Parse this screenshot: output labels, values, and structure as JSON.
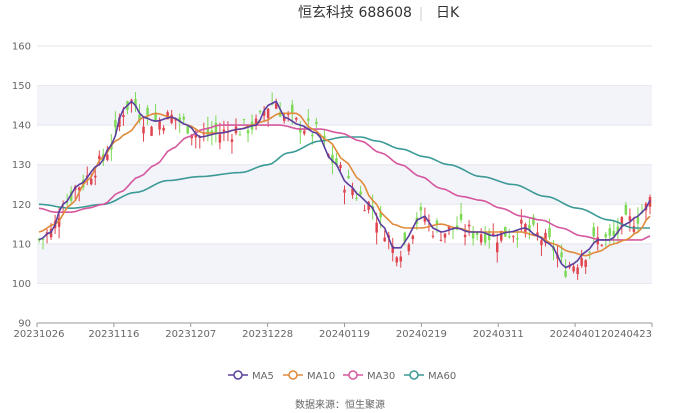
{
  "header": {
    "title": "恒玄科技 688608",
    "period": "日K"
  },
  "source": "数据来源：恒生聚源",
  "colors": {
    "up": "#e0454f",
    "down": "#7ed957",
    "band": "#f3f4fa",
    "axis": "#999999"
  },
  "chart_data": {
    "type": "candlestick",
    "title": "恒玄科技 688608",
    "period": "日K",
    "ylim": [
      90,
      160
    ],
    "yticks": [
      90,
      100,
      110,
      120,
      130,
      140,
      150,
      160
    ],
    "x_tick_labels": [
      "20231026",
      "20231116",
      "20231207",
      "20231228",
      "20240119",
      "20240219",
      "20240311",
      "20240401",
      "20240423"
    ],
    "legend": [
      "MA5",
      "MA10",
      "MA30",
      "MA60"
    ],
    "legend_position": "bottom",
    "ma_colors": {
      "MA5": "#5b3f9e",
      "MA10": "#e08a3c",
      "MA30": "#d5579e",
      "MA60": "#3c9a96"
    },
    "ma_anchors": {
      "MA5": [
        [
          0,
          111
        ],
        [
          3,
          113
        ],
        [
          6,
          120
        ],
        [
          10,
          125
        ],
        [
          15,
          130
        ],
        [
          18,
          135
        ],
        [
          21,
          144
        ],
        [
          23,
          146
        ],
        [
          26,
          142
        ],
        [
          29,
          141
        ],
        [
          33,
          142
        ],
        [
          37,
          140
        ],
        [
          40,
          137
        ],
        [
          45,
          138
        ],
        [
          50,
          139
        ],
        [
          54,
          140
        ],
        [
          57,
          145
        ],
        [
          59,
          146
        ],
        [
          61,
          142
        ],
        [
          65,
          140
        ],
        [
          69,
          138
        ],
        [
          73,
          131
        ],
        [
          77,
          125
        ],
        [
          80,
          122
        ],
        [
          82,
          120
        ],
        [
          86,
          114
        ],
        [
          88,
          109
        ],
        [
          90,
          109
        ],
        [
          92,
          112
        ],
        [
          94,
          116
        ],
        [
          96,
          117
        ],
        [
          98,
          114
        ],
        [
          100,
          113
        ],
        [
          104,
          114
        ],
        [
          107,
          113
        ],
        [
          110,
          113
        ],
        [
          113,
          112
        ],
        [
          117,
          113
        ],
        [
          121,
          114
        ],
        [
          124,
          112
        ],
        [
          127,
          110
        ],
        [
          131,
          104
        ],
        [
          133,
          105
        ],
        [
          136,
          108
        ],
        [
          139,
          111
        ],
        [
          142,
          111
        ],
        [
          146,
          115
        ],
        [
          149,
          117
        ],
        [
          151,
          119
        ],
        [
          152,
          121
        ]
      ],
      "MA10": [
        [
          0,
          113
        ],
        [
          4,
          115
        ],
        [
          8,
          120
        ],
        [
          12,
          126
        ],
        [
          16,
          132
        ],
        [
          19,
          136
        ],
        [
          22,
          138
        ],
        [
          26,
          142
        ],
        [
          29,
          143
        ],
        [
          33,
          142
        ],
        [
          37,
          140
        ],
        [
          41,
          138
        ],
        [
          45,
          138
        ],
        [
          50,
          139
        ],
        [
          53,
          140
        ],
        [
          56,
          141
        ],
        [
          60,
          143
        ],
        [
          64,
          143
        ],
        [
          68,
          139
        ],
        [
          72,
          136
        ],
        [
          76,
          131
        ],
        [
          80,
          126
        ],
        [
          83,
          121
        ],
        [
          86,
          117
        ],
        [
          88,
          115
        ],
        [
          91,
          114
        ],
        [
          95,
          114
        ],
        [
          100,
          115
        ],
        [
          104,
          114
        ],
        [
          108,
          113
        ],
        [
          112,
          113
        ],
        [
          116,
          113
        ],
        [
          120,
          113
        ],
        [
          124,
          112
        ],
        [
          128,
          110
        ],
        [
          132,
          108
        ],
        [
          136,
          107
        ],
        [
          139,
          108
        ],
        [
          143,
          110
        ],
        [
          146,
          111
        ],
        [
          149,
          113
        ],
        [
          152,
          117
        ]
      ],
      "MA30": [
        [
          0,
          119
        ],
        [
          4,
          118
        ],
        [
          8,
          118
        ],
        [
          12,
          119
        ],
        [
          16,
          120
        ],
        [
          20,
          123
        ],
        [
          25,
          127
        ],
        [
          29,
          130
        ],
        [
          33,
          134
        ],
        [
          37,
          137
        ],
        [
          41,
          139
        ],
        [
          45,
          140
        ],
        [
          50,
          140
        ],
        [
          55,
          140
        ],
        [
          60,
          140
        ],
        [
          65,
          139
        ],
        [
          70,
          139
        ],
        [
          75,
          138
        ],
        [
          80,
          136
        ],
        [
          85,
          133
        ],
        [
          90,
          130
        ],
        [
          95,
          127
        ],
        [
          100,
          124
        ],
        [
          105,
          122
        ],
        [
          110,
          121
        ],
        [
          115,
          119
        ],
        [
          120,
          117
        ],
        [
          125,
          116
        ],
        [
          130,
          114
        ],
        [
          135,
          112
        ],
        [
          140,
          111
        ],
        [
          145,
          111
        ],
        [
          150,
          111
        ],
        [
          152,
          112
        ]
      ],
      "MA60": [
        [
          0,
          120
        ],
        [
          8,
          119
        ],
        [
          16,
          120
        ],
        [
          24,
          123
        ],
        [
          32,
          126
        ],
        [
          40,
          127
        ],
        [
          50,
          128
        ],
        [
          57,
          130
        ],
        [
          62,
          133
        ],
        [
          70,
          136
        ],
        [
          76,
          137
        ],
        [
          80,
          137
        ],
        [
          84,
          136
        ],
        [
          90,
          134
        ],
        [
          96,
          132
        ],
        [
          102,
          130
        ],
        [
          110,
          127
        ],
        [
          118,
          125
        ],
        [
          126,
          122
        ],
        [
          134,
          119
        ],
        [
          142,
          116
        ],
        [
          148,
          114
        ],
        [
          152,
          114
        ]
      ]
    }
  }
}
